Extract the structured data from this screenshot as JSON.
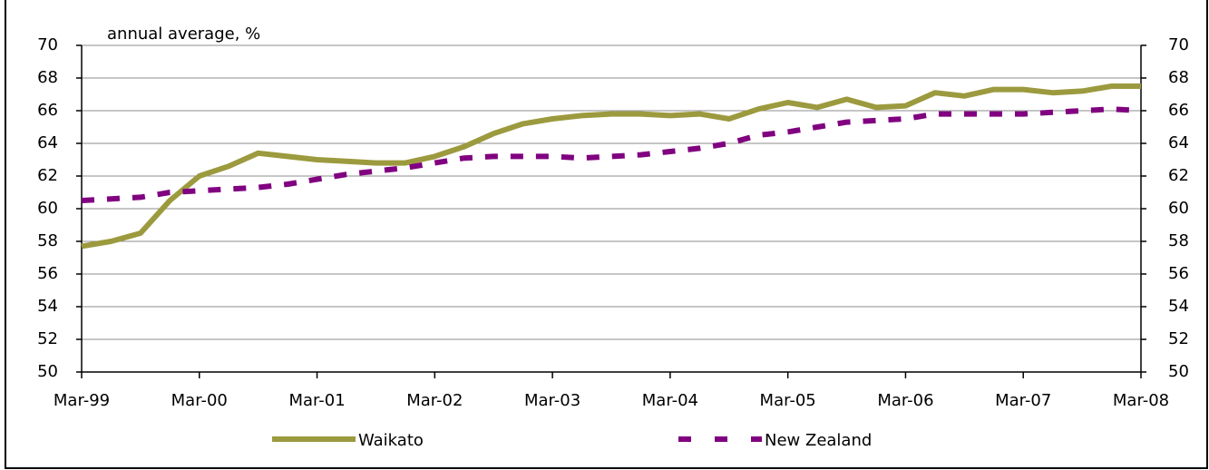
{
  "chart_data": {
    "type": "line",
    "annotation": "annual average, %",
    "categories": [
      "Mar-99",
      null,
      null,
      null,
      "Mar-00",
      null,
      null,
      null,
      "Mar-01",
      null,
      null,
      null,
      "Mar-02",
      null,
      null,
      null,
      "Mar-03",
      null,
      null,
      null,
      "Mar-04",
      null,
      null,
      null,
      "Mar-05",
      null,
      null,
      null,
      "Mar-06",
      null,
      null,
      null,
      "Mar-07",
      null,
      null,
      null,
      "Mar-08"
    ],
    "series": [
      {
        "name": "Waikato",
        "color": "#9c9a3e",
        "dashed": false,
        "values": [
          57.7,
          58.0,
          58.5,
          60.5,
          62.0,
          62.6,
          63.4,
          63.2,
          63.0,
          62.9,
          62.8,
          62.8,
          63.2,
          63.8,
          64.6,
          65.2,
          65.5,
          65.7,
          65.8,
          65.8,
          65.7,
          65.8,
          65.5,
          66.1,
          66.5,
          66.2,
          66.7,
          66.2,
          66.3,
          67.1,
          66.9,
          67.3,
          67.3,
          67.1,
          67.2,
          67.5,
          67.5
        ]
      },
      {
        "name": "New Zealand",
        "color": "#800080",
        "dashed": true,
        "values": [
          60.5,
          60.6,
          60.7,
          61.0,
          61.1,
          61.2,
          61.3,
          61.5,
          61.8,
          62.1,
          62.3,
          62.5,
          62.8,
          63.1,
          63.2,
          63.2,
          63.2,
          63.1,
          63.2,
          63.3,
          63.5,
          63.7,
          64.0,
          64.5,
          64.7,
          65.0,
          65.3,
          65.4,
          65.5,
          65.8,
          65.8,
          65.8,
          65.8,
          65.9,
          66.0,
          66.1,
          66.0
        ]
      }
    ],
    "ylim": [
      50,
      70
    ],
    "yticks": [
      50,
      52,
      54,
      56,
      58,
      60,
      62,
      64,
      66,
      68,
      70
    ],
    "y2lim": [
      50,
      70
    ],
    "y2ticks": [
      50,
      52,
      54,
      56,
      58,
      60,
      62,
      64,
      66,
      68,
      70
    ],
    "grid": true,
    "legend": "bottom"
  }
}
